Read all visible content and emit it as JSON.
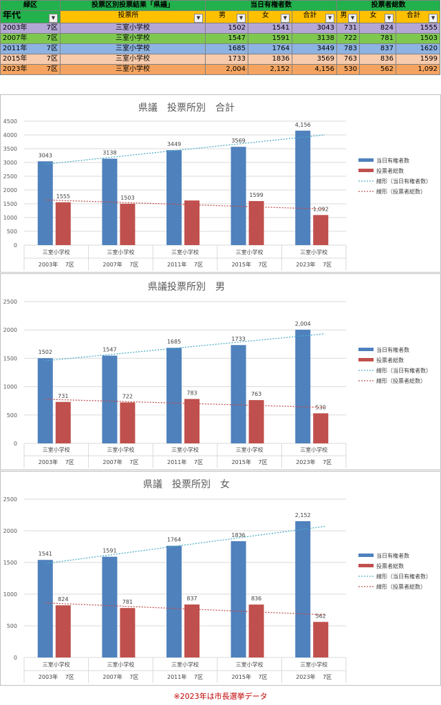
{
  "table": {
    "header1": {
      "district": "緑区",
      "title": "投票区別投票結果「県議」",
      "group1": "当日有権者数",
      "group2": "投票者総数"
    },
    "header2": {
      "era": "年代",
      "station": "投票所",
      "male": "男",
      "female": "女",
      "total": "合計",
      "male2": "男",
      "female2": "女",
      "total2": "合計"
    },
    "rows": [
      {
        "year": "2003年",
        "district": "7区",
        "station": "三室小学校",
        "reg_m": "1502",
        "reg_f": "1541",
        "reg_t": "3043",
        "vot_m": "731",
        "vot_f": "824",
        "vot_t": "1555"
      },
      {
        "year": "2007年",
        "district": "7区",
        "station": "三室小学校",
        "reg_m": "1547",
        "reg_f": "1591",
        "reg_t": "3138",
        "vot_m": "722",
        "vot_f": "781",
        "vot_t": "1503"
      },
      {
        "year": "2011年",
        "district": "7区",
        "station": "三室小学校",
        "reg_m": "1685",
        "reg_f": "1764",
        "reg_t": "3449",
        "vot_m": "783",
        "vot_f": "837",
        "vot_t": "1620"
      },
      {
        "year": "2015年",
        "district": "7区",
        "station": "三室小学校",
        "reg_m": "1733",
        "reg_f": "1836",
        "reg_t": "3569",
        "vot_m": "763",
        "vot_f": "836",
        "vot_t": "1599"
      },
      {
        "year": "2023年",
        "district": "7区",
        "station": "三室小学校",
        "reg_m": "2,004",
        "reg_f": "2,152",
        "reg_t": "4,156",
        "vot_m": "530",
        "vot_f": "562",
        "vot_t": "1,092"
      }
    ]
  },
  "colors": {
    "blue": "#4f81bd",
    "red": "#c0504d",
    "trend_blue": "#4bacc6",
    "trend_red": "#c0504d"
  },
  "chart_data": [
    {
      "type": "bar",
      "title": "県議　投票所別　合計",
      "categories": [
        "三室小学校",
        "三室小学校",
        "三室小学校",
        "三室小学校",
        "三室小学校"
      ],
      "categories2": [
        "2003年　 7区",
        "2007年　 7区",
        "2011年　 7区",
        "2015年　 7区",
        "2023年　 7区"
      ],
      "series": [
        {
          "name": "当日有権者数",
          "values": [
            3043,
            3138,
            3449,
            3569,
            4156
          ],
          "labels": [
            "3043",
            "3138",
            "3449",
            "3569",
            "4,156"
          ]
        },
        {
          "name": "投票者総数",
          "values": [
            1555,
            1503,
            1620,
            1599,
            1092
          ],
          "labels": [
            "1555",
            "1503",
            "",
            "1599",
            "1,092"
          ]
        }
      ],
      "trendlines": [
        "線形（当日有権者数）",
        "線形（投票者総数）"
      ],
      "yticks": [
        0,
        500,
        1000,
        1500,
        2000,
        2500,
        3000,
        3500,
        4000,
        4500
      ],
      "ylim": [
        0,
        4500
      ],
      "grid": true,
      "legend": "right"
    },
    {
      "type": "bar",
      "title": "県議投票所別　男",
      "categories": [
        "三室小学校",
        "三室小学校",
        "三室小学校",
        "三室小学校",
        "三室小学校"
      ],
      "categories2": [
        "2003年　 7区",
        "2007年　 7区",
        "2011年　 7区",
        "2015年　 7区",
        "2023年　 7区"
      ],
      "series": [
        {
          "name": "当日有権者数",
          "values": [
            1502,
            1547,
            1685,
            1733,
            2004
          ],
          "labels": [
            "1502",
            "1547",
            "1685",
            "1733",
            "2,004"
          ]
        },
        {
          "name": "投票者総数",
          "values": [
            731,
            722,
            783,
            763,
            530
          ],
          "labels": [
            "731",
            "722",
            "783",
            "763",
            "530"
          ]
        }
      ],
      "trendlines": [
        "線形（当日有権者数）",
        "線形（投票者総数）"
      ],
      "yticks": [
        0,
        500,
        1000,
        1500,
        2000,
        2500
      ],
      "ylim": [
        0,
        2500
      ],
      "grid": true,
      "legend": "right"
    },
    {
      "type": "bar",
      "title": "県議　投票所別　女",
      "categories": [
        "三室小学校",
        "三室小学校",
        "三室小学校",
        "三室小学校",
        "三室小学校"
      ],
      "categories2": [
        "2003年　 7区",
        "2007年　 7区",
        "2011年　 7区",
        "2015年　 7区",
        "2023年　 7区"
      ],
      "series": [
        {
          "name": "当日有権者数",
          "values": [
            1541,
            1591,
            1764,
            1836,
            2152
          ],
          "labels": [
            "1541",
            "1591",
            "1764",
            "1836",
            "2,152"
          ]
        },
        {
          "name": "投票者総数",
          "values": [
            824,
            781,
            837,
            836,
            562
          ],
          "labels": [
            "824",
            "781",
            "837",
            "836",
            "562"
          ]
        }
      ],
      "trendlines": [
        "線形（当日有権者数）",
        "線形（投票者総数）"
      ],
      "yticks": [
        0,
        500,
        1000,
        1500,
        2000,
        2500
      ],
      "ylim": [
        0,
        2500
      ],
      "grid": true,
      "legend": "right"
    }
  ],
  "footnote": "※2023年は市長選挙データ"
}
